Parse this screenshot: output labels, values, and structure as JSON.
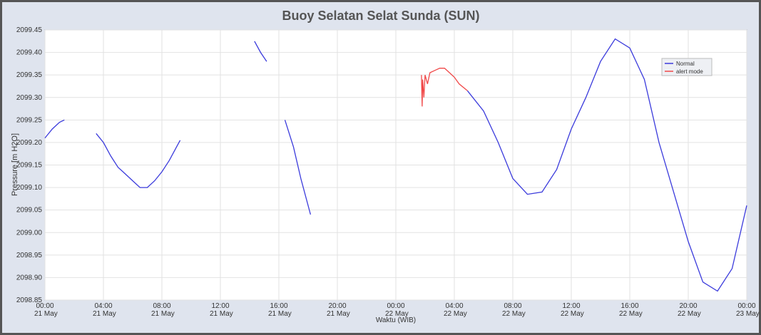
{
  "chart_data": {
    "type": "line",
    "title": "Buoy Selatan Selat Sunda (SUN)",
    "x_label": "Waktu (WIB)",
    "y_label": "Pressure [m H2O]",
    "xlim": [
      "21 May 00:00",
      "23 May 00:00"
    ],
    "xticks": [
      {
        "value": "21 May 00:00",
        "label": "00:00 21 May"
      },
      {
        "value": "21 May 04:00",
        "label": "04:00 21 May"
      },
      {
        "value": "21 May 08:00",
        "label": "08:00 21 May"
      },
      {
        "value": "21 May 12:00",
        "label": "12:00 21 May"
      },
      {
        "value": "21 May 16:00",
        "label": "16:00 21 May"
      },
      {
        "value": "21 May 20:00",
        "label": "20:00 21 May"
      },
      {
        "value": "22 May 00:00",
        "label": "00:00 22 May"
      },
      {
        "value": "22 May 04:00",
        "label": "04:00 22 May"
      },
      {
        "value": "22 May 08:00",
        "label": "08:00 22 May"
      },
      {
        "value": "22 May 12:00",
        "label": "12:00 22 May"
      },
      {
        "value": "22 May 16:00",
        "label": "16:00 22 May"
      },
      {
        "value": "22 May 20:00",
        "label": "20:00 22 May"
      },
      {
        "value": "23 May 00:00",
        "label": "00:00 23 May"
      }
    ],
    "ylim": [
      2098.85,
      2099.45
    ],
    "yticks": [
      2098.85,
      {
        "value": 2098.9,
        "label": "2098.90"
      },
      2098.95,
      {
        "value": 2099.0,
        "label": "2099.00"
      },
      2099.05,
      {
        "value": 2099.1,
        "label": "2099.10"
      },
      2099.15,
      {
        "value": 2099.2,
        "label": "2099.20"
      },
      2099.25,
      {
        "value": 2099.3,
        "label": "2099.30"
      },
      2099.35,
      {
        "value": 2099.4,
        "label": "2099.40"
      },
      2099.45
    ],
    "grid": true,
    "legend": "upper right",
    "series": [
      {
        "name": "Normal",
        "color": "#3b3bdc",
        "x": [
          "21 May 00:00",
          "21 May 00:30",
          "21 May 01:00",
          "21 May 01:20",
          "21 May 02:00",
          "21 May 03:30",
          "21 May 04:00",
          "21 May 04:30",
          "21 May 05:00",
          "21 May 05:30",
          "21 May 06:00",
          "21 May 06:30",
          "21 May 07:00",
          "21 May 07:30",
          "21 May 08:00",
          "21 May 08:30",
          "21 May 09:00",
          "21 May 09:15",
          "21 May 12:00",
          "21 May 14:20",
          "21 May 14:45",
          "21 May 15:10",
          "21 May 16:00",
          "21 May 16:25",
          "21 May 17:00",
          "21 May 17:30",
          "21 May 18:10",
          "22 May 02:00",
          "22 May 04:54",
          "22 May 06:00",
          "22 May 07:00",
          "22 May 08:00",
          "22 May 09:00",
          "22 May 10:00",
          "22 May 11:00",
          "22 May 12:00",
          "22 May 13:00",
          "22 May 14:00",
          "22 May 15:00",
          "22 May 16:00",
          "22 May 17:00",
          "22 May 18:00",
          "22 May 19:00",
          "22 May 20:00",
          "22 May 21:00",
          "22 May 22:00",
          "22 May 23:00",
          "23 May 00:00"
        ],
        "values": [
          2099.21,
          2099.23,
          2099.245,
          2099.25,
          null,
          2099.22,
          2099.2,
          2099.17,
          2099.145,
          2099.13,
          2099.115,
          2099.1,
          2099.1,
          2099.115,
          2099.135,
          2099.16,
          2099.19,
          2099.205,
          null,
          2099.425,
          2099.4,
          2099.38,
          null,
          2099.25,
          2099.19,
          2099.12,
          2099.04,
          null,
          2099.315,
          2099.27,
          2099.2,
          2099.12,
          2099.085,
          2099.09,
          2099.14,
          2099.23,
          2099.3,
          2099.38,
          2099.43,
          2099.41,
          2099.34,
          2099.2,
          2099.09,
          2098.98,
          2098.89,
          2098.87,
          2098.92,
          2099.06
        ]
      },
      {
        "name": "alert mode",
        "color": "#f04848",
        "x": [
          "22 May 01:45",
          "22 May 01:48",
          "22 May 01:50",
          "22 May 01:55",
          "22 May 02:00",
          "22 May 02:10",
          "22 May 02:20",
          "22 May 02:40",
          "22 May 03:00",
          "22 May 03:20",
          "22 May 03:40",
          "22 May 04:00",
          "22 May 04:20",
          "22 May 04:54"
        ],
        "values": [
          2099.35,
          2099.28,
          2099.34,
          2099.3,
          2099.35,
          2099.33,
          2099.355,
          2099.36,
          2099.365,
          2099.365,
          2099.355,
          2099.345,
          2099.33,
          2099.315
        ]
      }
    ]
  }
}
